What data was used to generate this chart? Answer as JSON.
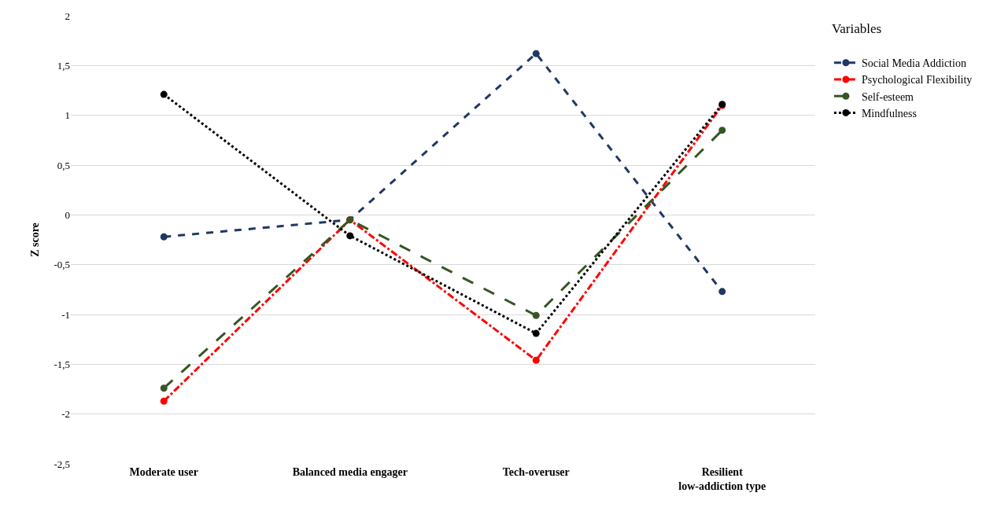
{
  "chart_data": {
    "type": "line",
    "ylabel": "Z score",
    "legend_title": "Variables",
    "legend": "right",
    "grid": "y",
    "marker": "circle",
    "categories": [
      "Moderate user",
      "Balanced media engager",
      "Tech-overuser",
      "Resilient low-addiction type"
    ],
    "ylim": [
      -2.5,
      2
    ],
    "yticks": [
      {
        "value": -2.5,
        "label": "-2,5"
      },
      -2,
      {
        "value": -1.5,
        "label": "-1,5"
      },
      -1,
      {
        "value": -0.5,
        "label": "-0,5"
      },
      0,
      {
        "value": 0.5,
        "label": "0,5"
      },
      1,
      {
        "value": 1.5,
        "label": "1,5"
      },
      2
    ],
    "series": [
      {
        "name": "Social Media Addiction",
        "color": "#1f3864",
        "line_style": "dashed",
        "values": [
          -0.22,
          -0.05,
          1.62,
          -0.77
        ]
      },
      {
        "name": "Psychological Flexibility",
        "color": "#ff0000",
        "line_style": "dashdot",
        "values": [
          -1.87,
          -0.05,
          -1.46,
          1.1
        ]
      },
      {
        "name": "Self-esteem",
        "color": "#375623",
        "line_style": "longdash",
        "values": [
          -1.74,
          -0.05,
          -1.01,
          0.85
        ]
      },
      {
        "name": "Mindfulness",
        "color": "#000000",
        "line_style": "dotted",
        "values": [
          1.21,
          -0.21,
          -1.19,
          1.11
        ]
      }
    ]
  }
}
